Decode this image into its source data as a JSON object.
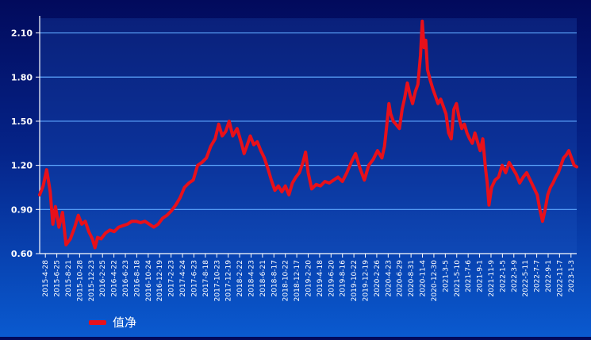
{
  "chart_data": {
    "type": "line",
    "title": "",
    "xlabel": "",
    "ylabel": "",
    "ylim": [
      0.6,
      2.2
    ],
    "yticks": [
      "0.60",
      "0.90",
      "1.20",
      "1.50",
      "1.80",
      "2.10"
    ],
    "xticks": [
      "2015-4-28",
      "2015-6-25",
      "2015-8-21",
      "2015-10-28",
      "2015-12-23",
      "2016-2-25",
      "2016-4-22",
      "2016-6-23",
      "2016-8-18",
      "2016-10-24",
      "2016-12-19",
      "2017-2-23",
      "2017-4-24",
      "2017-6-23",
      "2017-8-18",
      "2017-10-23",
      "2017-12-19",
      "2018-2-22",
      "2018-4-23",
      "2018-6-21",
      "2018-8-17",
      "2018-10-22",
      "2018-12-17",
      "2019-2-20",
      "2019-4-18",
      "2019-6-20",
      "2019-8-16",
      "2019-10-22",
      "2019-12-19",
      "2020-2-26",
      "2020-4-23",
      "2020-6-29",
      "2020-8-31",
      "2020-11-4",
      "2020-12-30",
      "2021-3-5",
      "2021-5-10",
      "2021-7-6",
      "2021-9-1",
      "2021-11-9",
      "2022-1-5",
      "2022-3-9",
      "2022-5-11",
      "2022-7-7",
      "2022-9-1",
      "2022-11-7",
      "2023-1-3"
    ],
    "grid": true,
    "legend_position": "bottom-left",
    "colors": {
      "line": "#e8101a",
      "grid": "#5fa8ff",
      "axis": "#ffffff",
      "text": "#ffffff"
    },
    "series": [
      {
        "name": "值净",
        "points": [
          [
            0,
            1.0
          ],
          [
            0.4,
            1.06
          ],
          [
            0.8,
            1.17
          ],
          [
            1.2,
            1.02
          ],
          [
            1.5,
            0.8
          ],
          [
            1.8,
            0.92
          ],
          [
            2.2,
            0.78
          ],
          [
            2.6,
            0.88
          ],
          [
            3.0,
            0.66
          ],
          [
            3.5,
            0.7
          ],
          [
            4.0,
            0.78
          ],
          [
            4.4,
            0.86
          ],
          [
            4.8,
            0.8
          ],
          [
            5.2,
            0.82
          ],
          [
            5.6,
            0.75
          ],
          [
            6.0,
            0.7
          ],
          [
            6.3,
            0.64
          ],
          [
            6.6,
            0.71
          ],
          [
            7.0,
            0.7
          ],
          [
            7.5,
            0.74
          ],
          [
            8.0,
            0.76
          ],
          [
            8.5,
            0.75
          ],
          [
            9.0,
            0.78
          ],
          [
            9.5,
            0.79
          ],
          [
            10.0,
            0.8
          ],
          [
            10.5,
            0.82
          ],
          [
            11.0,
            0.82
          ],
          [
            11.5,
            0.81
          ],
          [
            12.0,
            0.82
          ],
          [
            12.5,
            0.8
          ],
          [
            13.0,
            0.78
          ],
          [
            13.5,
            0.8
          ],
          [
            14.0,
            0.84
          ],
          [
            14.5,
            0.86
          ],
          [
            15.0,
            0.89
          ],
          [
            15.5,
            0.93
          ],
          [
            16.0,
            0.98
          ],
          [
            16.5,
            1.05
          ],
          [
            17.0,
            1.08
          ],
          [
            17.5,
            1.1
          ],
          [
            18.0,
            1.2
          ],
          [
            18.5,
            1.22
          ],
          [
            19.0,
            1.25
          ],
          [
            19.5,
            1.33
          ],
          [
            20.0,
            1.38
          ],
          [
            20.4,
            1.48
          ],
          [
            20.8,
            1.4
          ],
          [
            21.2,
            1.43
          ],
          [
            21.6,
            1.5
          ],
          [
            22.0,
            1.4
          ],
          [
            22.5,
            1.45
          ],
          [
            23.0,
            1.35
          ],
          [
            23.3,
            1.28
          ],
          [
            23.6,
            1.33
          ],
          [
            24.0,
            1.4
          ],
          [
            24.4,
            1.34
          ],
          [
            24.8,
            1.36
          ],
          [
            25.2,
            1.3
          ],
          [
            25.6,
            1.25
          ],
          [
            26.0,
            1.18
          ],
          [
            26.4,
            1.1
          ],
          [
            26.8,
            1.03
          ],
          [
            27.2,
            1.06
          ],
          [
            27.6,
            1.02
          ],
          [
            28.0,
            1.06
          ],
          [
            28.4,
            1.0
          ],
          [
            28.8,
            1.08
          ],
          [
            29.2,
            1.12
          ],
          [
            29.6,
            1.15
          ],
          [
            30.0,
            1.22
          ],
          [
            30.3,
            1.29
          ],
          [
            30.6,
            1.15
          ],
          [
            31.0,
            1.04
          ],
          [
            31.5,
            1.07
          ],
          [
            32.0,
            1.06
          ],
          [
            32.5,
            1.09
          ],
          [
            33.0,
            1.08
          ],
          [
            33.5,
            1.1
          ],
          [
            34.0,
            1.12
          ],
          [
            34.5,
            1.09
          ],
          [
            35.0,
            1.15
          ],
          [
            35.5,
            1.22
          ],
          [
            36.0,
            1.28
          ],
          [
            36.5,
            1.18
          ],
          [
            37.0,
            1.1
          ],
          [
            37.5,
            1.2
          ],
          [
            38.0,
            1.24
          ],
          [
            38.5,
            1.3
          ],
          [
            39.0,
            1.25
          ],
          [
            39.3,
            1.33
          ],
          [
            39.6,
            1.5
          ],
          [
            39.8,
            1.62
          ],
          [
            40.0,
            1.55
          ],
          [
            40.3,
            1.5
          ],
          [
            40.6,
            1.48
          ],
          [
            41.0,
            1.45
          ],
          [
            41.3,
            1.58
          ],
          [
            41.6,
            1.66
          ],
          [
            41.9,
            1.76
          ],
          [
            42.2,
            1.68
          ],
          [
            42.5,
            1.62
          ],
          [
            42.8,
            1.7
          ],
          [
            43.1,
            1.75
          ],
          [
            43.4,
            1.95
          ],
          [
            43.6,
            2.18
          ],
          [
            43.8,
            2.0
          ],
          [
            44.0,
            2.05
          ],
          [
            44.2,
            1.85
          ],
          [
            44.5,
            1.78
          ],
          [
            44.8,
            1.72
          ],
          [
            45.1,
            1.67
          ],
          [
            45.4,
            1.62
          ],
          [
            45.7,
            1.65
          ],
          [
            46.0,
            1.6
          ],
          [
            46.3,
            1.55
          ],
          [
            46.6,
            1.42
          ],
          [
            46.9,
            1.38
          ],
          [
            47.2,
            1.58
          ],
          [
            47.5,
            1.62
          ],
          [
            47.8,
            1.52
          ],
          [
            48.1,
            1.45
          ],
          [
            48.4,
            1.48
          ],
          [
            48.7,
            1.42
          ],
          [
            49.0,
            1.38
          ],
          [
            49.3,
            1.35
          ],
          [
            49.6,
            1.42
          ],
          [
            49.9,
            1.36
          ],
          [
            50.2,
            1.3
          ],
          [
            50.5,
            1.38
          ],
          [
            50.8,
            1.18
          ],
          [
            51.0,
            1.08
          ],
          [
            51.2,
            0.93
          ],
          [
            51.5,
            1.05
          ],
          [
            51.9,
            1.1
          ],
          [
            52.3,
            1.12
          ],
          [
            52.7,
            1.2
          ],
          [
            53.1,
            1.15
          ],
          [
            53.5,
            1.22
          ],
          [
            53.9,
            1.18
          ],
          [
            54.3,
            1.14
          ],
          [
            54.7,
            1.08
          ],
          [
            55.1,
            1.12
          ],
          [
            55.5,
            1.15
          ],
          [
            55.9,
            1.1
          ],
          [
            56.3,
            1.05
          ],
          [
            56.7,
            1.0
          ],
          [
            57.0,
            0.9
          ],
          [
            57.3,
            0.82
          ],
          [
            57.6,
            0.9
          ],
          [
            57.9,
            1.0
          ],
          [
            58.2,
            1.05
          ],
          [
            58.5,
            1.08
          ],
          [
            58.8,
            1.12
          ],
          [
            59.1,
            1.15
          ],
          [
            59.4,
            1.2
          ],
          [
            59.7,
            1.25
          ],
          [
            60.0,
            1.27
          ],
          [
            60.3,
            1.3
          ],
          [
            60.6,
            1.25
          ],
          [
            60.9,
            1.2
          ],
          [
            61.2,
            1.19
          ]
        ]
      }
    ],
    "x_domain": [
      0,
      61.2
    ]
  },
  "legend": {
    "label": "值净"
  }
}
